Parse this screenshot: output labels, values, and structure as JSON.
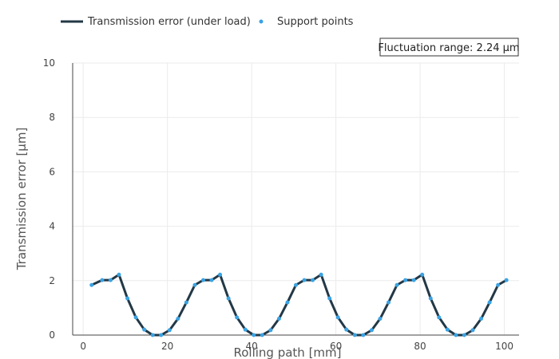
{
  "chart_data": {
    "type": "line",
    "xlabel": "Rolling path [mm]",
    "ylabel": "Transmission error [µm]",
    "xlim": [
      -2.5,
      103.5
    ],
    "ylim": [
      0,
      10
    ],
    "x_ticks": [
      0,
      20,
      40,
      60,
      80,
      100
    ],
    "y_ticks": [
      0,
      2,
      4,
      6,
      8,
      10
    ],
    "grid": true,
    "legend_position": "top-left",
    "annotation": "Fluctuation range: 2.24 µm",
    "series": [
      {
        "name": "Transmission error (under load)",
        "mode": "line",
        "color": "#233846",
        "x": [
          2,
          4.5,
          6.5,
          8.5,
          10.5,
          12.5,
          14.5,
          16.5,
          18.5,
          20.5,
          22.5,
          24.5,
          26.5,
          28.5,
          30.5,
          32.5,
          34.5,
          36.5,
          38.5,
          40.5,
          42.5,
          44.5,
          46.5,
          48.5,
          50.5,
          52.5,
          54.5,
          56.5,
          58.5,
          60.5,
          62.5,
          64.5,
          66.5,
          68.5,
          70.5,
          72.5,
          74.5,
          76.5,
          78.5,
          80.5,
          82.5,
          84.5,
          86.5,
          88.5,
          90.5,
          92.5,
          94.5,
          96.5,
          98.5,
          100.5
        ],
        "y": [
          1.84,
          2.02,
          2.02,
          2.22,
          1.35,
          0.65,
          0.2,
          0.0,
          0.0,
          0.18,
          0.6,
          1.2,
          1.84,
          2.02,
          2.02,
          2.22,
          1.35,
          0.65,
          0.2,
          0.0,
          0.0,
          0.18,
          0.6,
          1.2,
          1.84,
          2.02,
          2.02,
          2.22,
          1.35,
          0.65,
          0.2,
          0.0,
          0.0,
          0.18,
          0.6,
          1.2,
          1.84,
          2.02,
          2.02,
          2.22,
          1.35,
          0.65,
          0.2,
          0.0,
          0.0,
          0.18,
          0.6,
          1.2,
          1.84,
          2.02
        ]
      },
      {
        "name": "Support points",
        "mode": "markers",
        "color": "#3aa3e3",
        "x": [
          2,
          4.5,
          6.5,
          8.5,
          10.5,
          12.5,
          14.5,
          16.5,
          18.5,
          20.5,
          22.5,
          24.5,
          26.5,
          28.5,
          30.5,
          32.5,
          34.5,
          36.5,
          38.5,
          40.5,
          42.5,
          44.5,
          46.5,
          48.5,
          50.5,
          52.5,
          54.5,
          56.5,
          58.5,
          60.5,
          62.5,
          64.5,
          66.5,
          68.5,
          70.5,
          72.5,
          74.5,
          76.5,
          78.5,
          80.5,
          82.5,
          84.5,
          86.5,
          88.5,
          90.5,
          92.5,
          94.5,
          96.5,
          98.5,
          100.5
        ],
        "y": [
          1.84,
          2.02,
          2.02,
          2.22,
          1.35,
          0.65,
          0.2,
          0.0,
          0.0,
          0.18,
          0.6,
          1.2,
          1.84,
          2.02,
          2.02,
          2.22,
          1.35,
          0.65,
          0.2,
          0.0,
          0.0,
          0.18,
          0.6,
          1.2,
          1.84,
          2.02,
          2.02,
          2.22,
          1.35,
          0.65,
          0.2,
          0.0,
          0.0,
          0.18,
          0.6,
          1.2,
          1.84,
          2.02,
          2.02,
          2.22,
          1.35,
          0.65,
          0.2,
          0.0,
          0.0,
          0.18,
          0.6,
          1.2,
          1.84,
          2.02
        ]
      }
    ]
  }
}
